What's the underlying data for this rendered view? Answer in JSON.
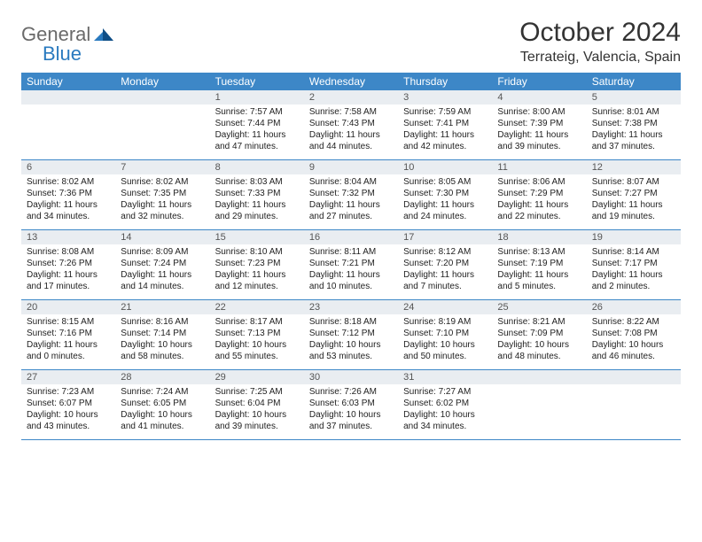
{
  "logo": {
    "text1": "General",
    "text2": "Blue"
  },
  "title": "October 2024",
  "location": "Terrateig, Valencia, Spain",
  "colors": {
    "header_bg": "#3d87c7",
    "daynum_bg": "#e9edf1",
    "row_border": "#3d87c7",
    "logo_gray": "#6a6a6a",
    "logo_blue": "#2a7abf"
  },
  "dow": [
    "Sunday",
    "Monday",
    "Tuesday",
    "Wednesday",
    "Thursday",
    "Friday",
    "Saturday"
  ],
  "weeks": [
    [
      null,
      null,
      {
        "n": "1",
        "sr": "Sunrise: 7:57 AM",
        "ss": "Sunset: 7:44 PM",
        "d1": "Daylight: 11 hours",
        "d2": "and 47 minutes."
      },
      {
        "n": "2",
        "sr": "Sunrise: 7:58 AM",
        "ss": "Sunset: 7:43 PM",
        "d1": "Daylight: 11 hours",
        "d2": "and 44 minutes."
      },
      {
        "n": "3",
        "sr": "Sunrise: 7:59 AM",
        "ss": "Sunset: 7:41 PM",
        "d1": "Daylight: 11 hours",
        "d2": "and 42 minutes."
      },
      {
        "n": "4",
        "sr": "Sunrise: 8:00 AM",
        "ss": "Sunset: 7:39 PM",
        "d1": "Daylight: 11 hours",
        "d2": "and 39 minutes."
      },
      {
        "n": "5",
        "sr": "Sunrise: 8:01 AM",
        "ss": "Sunset: 7:38 PM",
        "d1": "Daylight: 11 hours",
        "d2": "and 37 minutes."
      }
    ],
    [
      {
        "n": "6",
        "sr": "Sunrise: 8:02 AM",
        "ss": "Sunset: 7:36 PM",
        "d1": "Daylight: 11 hours",
        "d2": "and 34 minutes."
      },
      {
        "n": "7",
        "sr": "Sunrise: 8:02 AM",
        "ss": "Sunset: 7:35 PM",
        "d1": "Daylight: 11 hours",
        "d2": "and 32 minutes."
      },
      {
        "n": "8",
        "sr": "Sunrise: 8:03 AM",
        "ss": "Sunset: 7:33 PM",
        "d1": "Daylight: 11 hours",
        "d2": "and 29 minutes."
      },
      {
        "n": "9",
        "sr": "Sunrise: 8:04 AM",
        "ss": "Sunset: 7:32 PM",
        "d1": "Daylight: 11 hours",
        "d2": "and 27 minutes."
      },
      {
        "n": "10",
        "sr": "Sunrise: 8:05 AM",
        "ss": "Sunset: 7:30 PM",
        "d1": "Daylight: 11 hours",
        "d2": "and 24 minutes."
      },
      {
        "n": "11",
        "sr": "Sunrise: 8:06 AM",
        "ss": "Sunset: 7:29 PM",
        "d1": "Daylight: 11 hours",
        "d2": "and 22 minutes."
      },
      {
        "n": "12",
        "sr": "Sunrise: 8:07 AM",
        "ss": "Sunset: 7:27 PM",
        "d1": "Daylight: 11 hours",
        "d2": "and 19 minutes."
      }
    ],
    [
      {
        "n": "13",
        "sr": "Sunrise: 8:08 AM",
        "ss": "Sunset: 7:26 PM",
        "d1": "Daylight: 11 hours",
        "d2": "and 17 minutes."
      },
      {
        "n": "14",
        "sr": "Sunrise: 8:09 AM",
        "ss": "Sunset: 7:24 PM",
        "d1": "Daylight: 11 hours",
        "d2": "and 14 minutes."
      },
      {
        "n": "15",
        "sr": "Sunrise: 8:10 AM",
        "ss": "Sunset: 7:23 PM",
        "d1": "Daylight: 11 hours",
        "d2": "and 12 minutes."
      },
      {
        "n": "16",
        "sr": "Sunrise: 8:11 AM",
        "ss": "Sunset: 7:21 PM",
        "d1": "Daylight: 11 hours",
        "d2": "and 10 minutes."
      },
      {
        "n": "17",
        "sr": "Sunrise: 8:12 AM",
        "ss": "Sunset: 7:20 PM",
        "d1": "Daylight: 11 hours",
        "d2": "and 7 minutes."
      },
      {
        "n": "18",
        "sr": "Sunrise: 8:13 AM",
        "ss": "Sunset: 7:19 PM",
        "d1": "Daylight: 11 hours",
        "d2": "and 5 minutes."
      },
      {
        "n": "19",
        "sr": "Sunrise: 8:14 AM",
        "ss": "Sunset: 7:17 PM",
        "d1": "Daylight: 11 hours",
        "d2": "and 2 minutes."
      }
    ],
    [
      {
        "n": "20",
        "sr": "Sunrise: 8:15 AM",
        "ss": "Sunset: 7:16 PM",
        "d1": "Daylight: 11 hours",
        "d2": "and 0 minutes."
      },
      {
        "n": "21",
        "sr": "Sunrise: 8:16 AM",
        "ss": "Sunset: 7:14 PM",
        "d1": "Daylight: 10 hours",
        "d2": "and 58 minutes."
      },
      {
        "n": "22",
        "sr": "Sunrise: 8:17 AM",
        "ss": "Sunset: 7:13 PM",
        "d1": "Daylight: 10 hours",
        "d2": "and 55 minutes."
      },
      {
        "n": "23",
        "sr": "Sunrise: 8:18 AM",
        "ss": "Sunset: 7:12 PM",
        "d1": "Daylight: 10 hours",
        "d2": "and 53 minutes."
      },
      {
        "n": "24",
        "sr": "Sunrise: 8:19 AM",
        "ss": "Sunset: 7:10 PM",
        "d1": "Daylight: 10 hours",
        "d2": "and 50 minutes."
      },
      {
        "n": "25",
        "sr": "Sunrise: 8:21 AM",
        "ss": "Sunset: 7:09 PM",
        "d1": "Daylight: 10 hours",
        "d2": "and 48 minutes."
      },
      {
        "n": "26",
        "sr": "Sunrise: 8:22 AM",
        "ss": "Sunset: 7:08 PM",
        "d1": "Daylight: 10 hours",
        "d2": "and 46 minutes."
      }
    ],
    [
      {
        "n": "27",
        "sr": "Sunrise: 7:23 AM",
        "ss": "Sunset: 6:07 PM",
        "d1": "Daylight: 10 hours",
        "d2": "and 43 minutes."
      },
      {
        "n": "28",
        "sr": "Sunrise: 7:24 AM",
        "ss": "Sunset: 6:05 PM",
        "d1": "Daylight: 10 hours",
        "d2": "and 41 minutes."
      },
      {
        "n": "29",
        "sr": "Sunrise: 7:25 AM",
        "ss": "Sunset: 6:04 PM",
        "d1": "Daylight: 10 hours",
        "d2": "and 39 minutes."
      },
      {
        "n": "30",
        "sr": "Sunrise: 7:26 AM",
        "ss": "Sunset: 6:03 PM",
        "d1": "Daylight: 10 hours",
        "d2": "and 37 minutes."
      },
      {
        "n": "31",
        "sr": "Sunrise: 7:27 AM",
        "ss": "Sunset: 6:02 PM",
        "d1": "Daylight: 10 hours",
        "d2": "and 34 minutes."
      },
      null,
      null
    ]
  ]
}
